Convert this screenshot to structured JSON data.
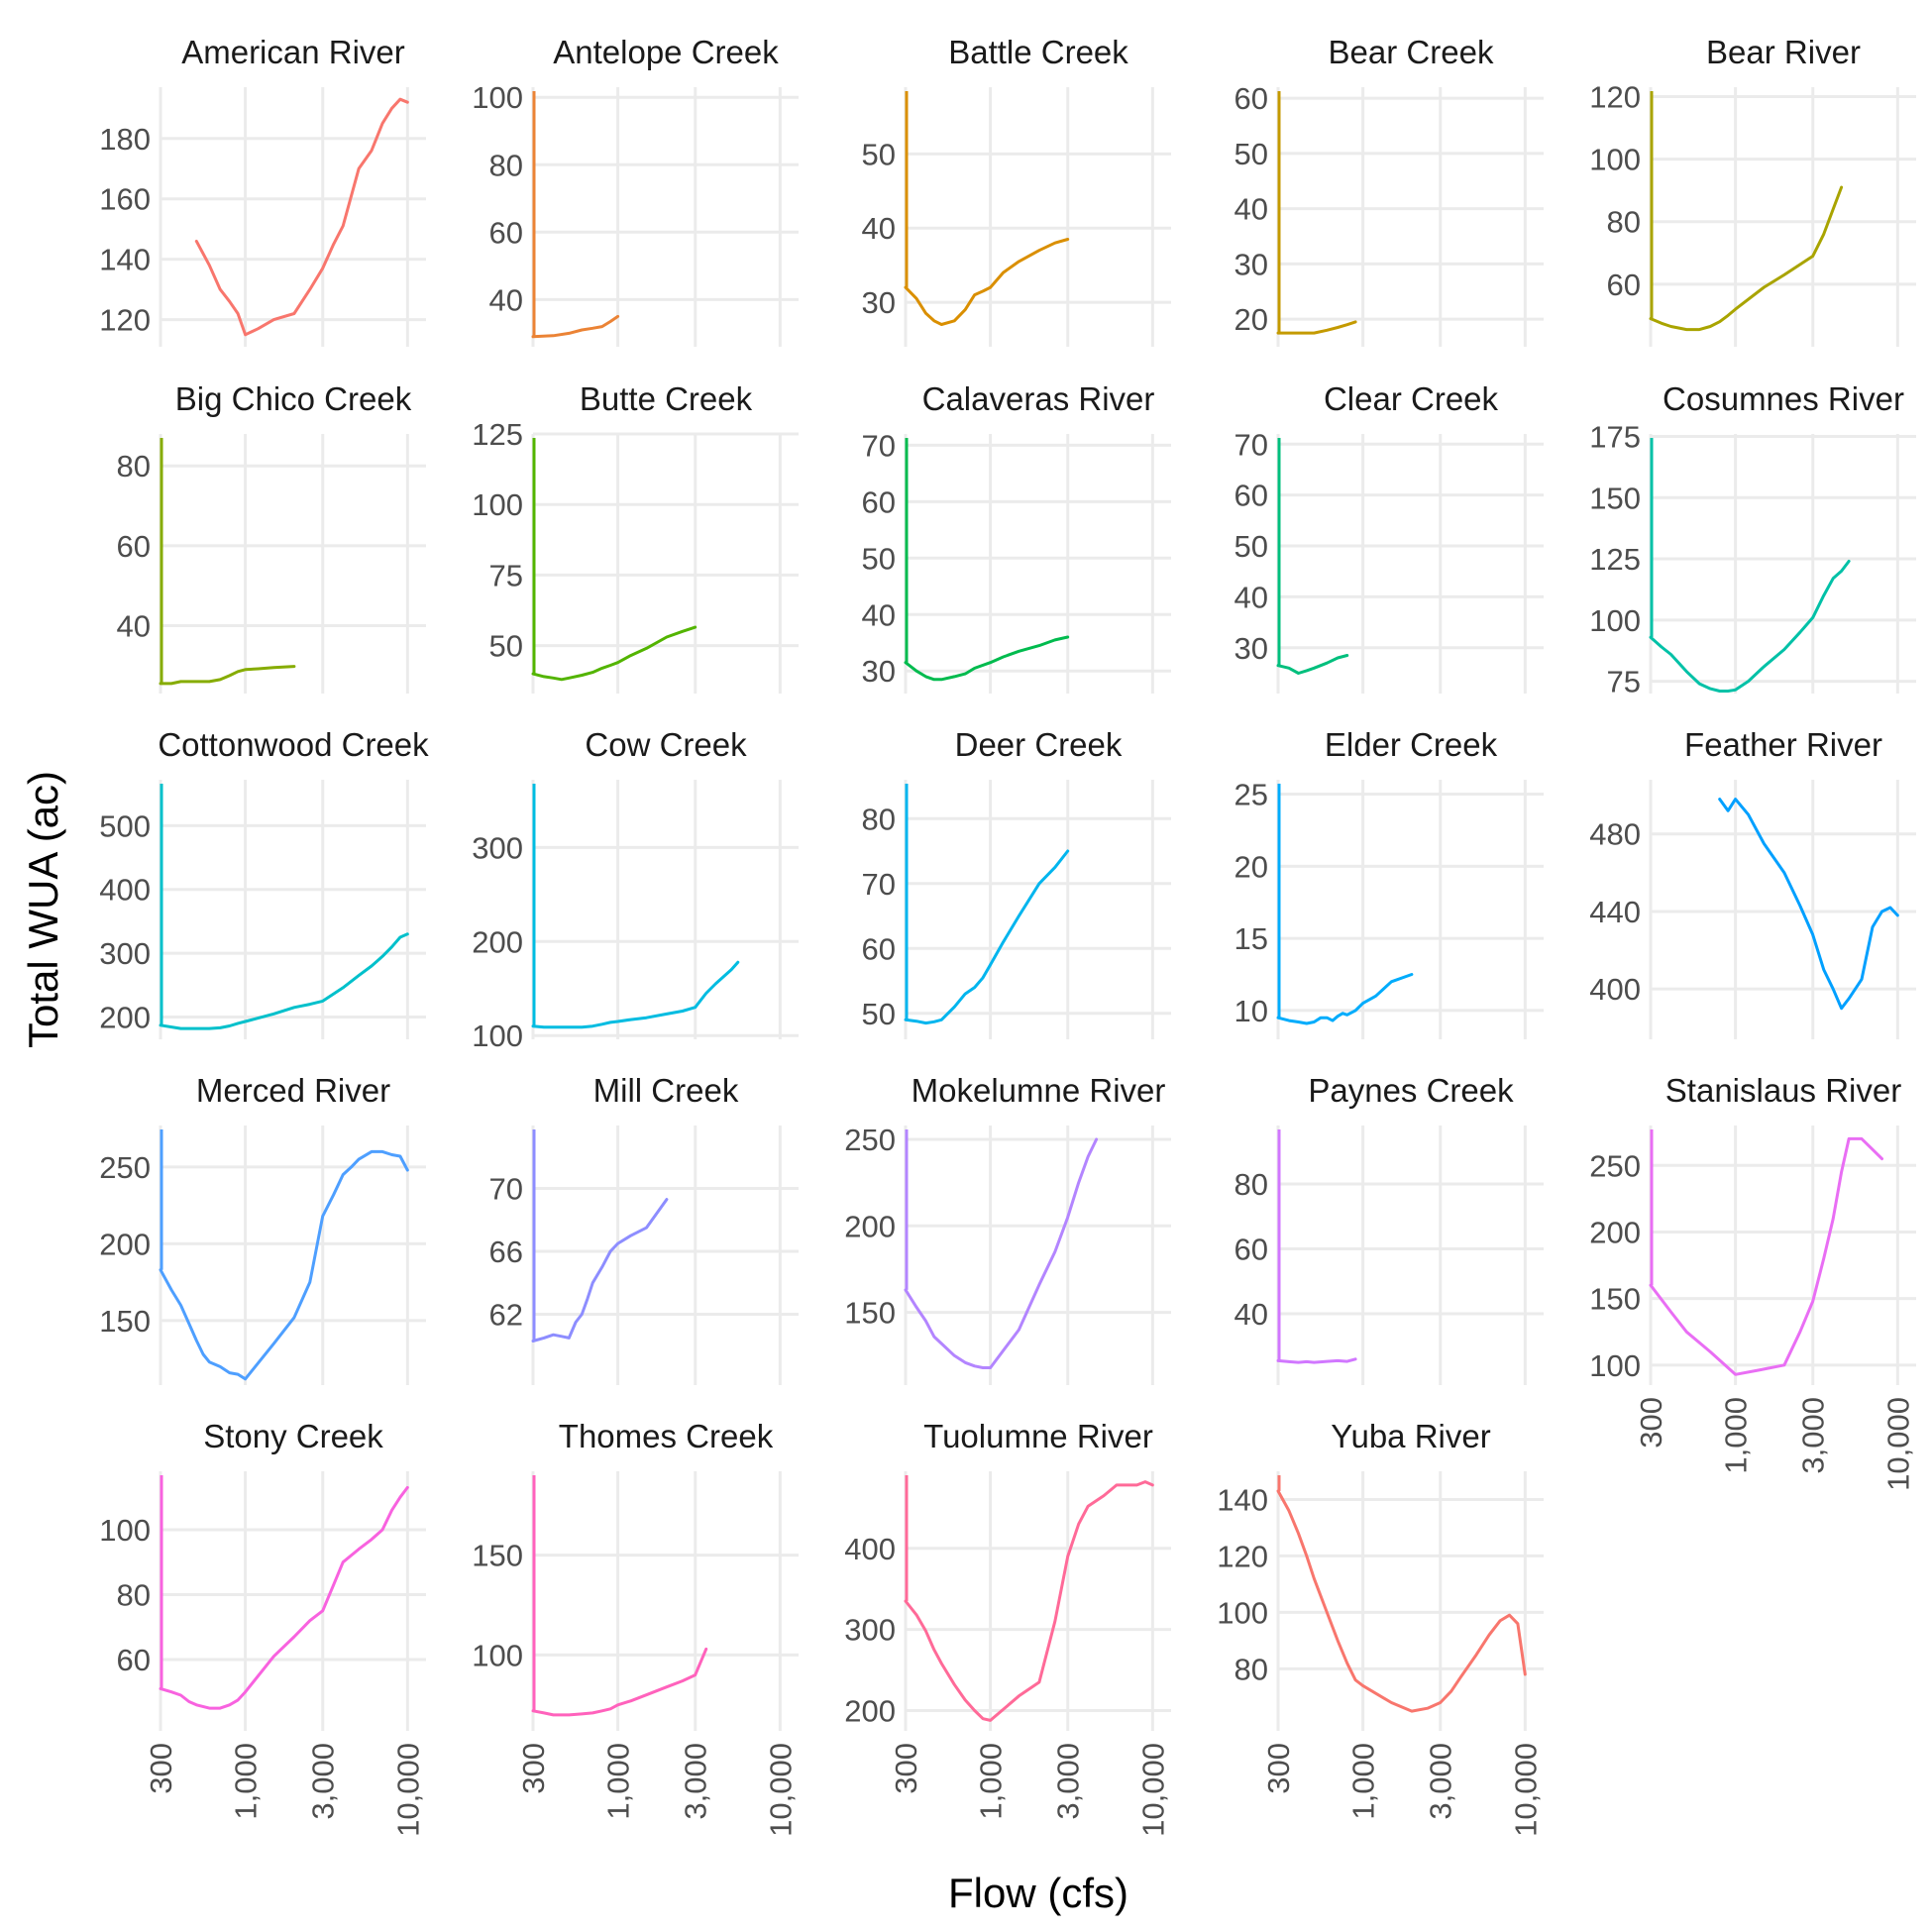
{
  "chart_data": {
    "type": "line",
    "layout": "facet_wrap",
    "xlabel": "Flow (cfs)",
    "ylabel": "Total WUA (ac)",
    "x_scale": "log10",
    "x_ticks": [
      300,
      1000,
      3000,
      10000
    ],
    "x_tick_labels": [
      "300",
      "1,000",
      "3,000",
      "10,000"
    ],
    "xlim": [
      300,
      13000
    ],
    "grid": true,
    "legend": "none",
    "panels": [
      {
        "name": "American River",
        "color": "#F8766D",
        "ylim": [
          111,
          197
        ],
        "yticks": [
          120,
          140,
          160,
          180
        ],
        "x": [
          500,
          600,
          700,
          800,
          900,
          1000,
          1200,
          1500,
          2000,
          2500,
          3000,
          3500,
          4000,
          5000,
          6000,
          7000,
          8000,
          9000,
          10000
        ],
        "y": [
          146,
          138,
          130,
          126,
          122,
          115,
          117,
          120,
          122,
          130,
          137,
          145,
          151,
          170,
          176,
          185,
          190,
          193,
          192
        ]
      },
      {
        "name": "Antelope Creek",
        "color": "#EB8335",
        "ylim": [
          26,
          103
        ],
        "yticks": [
          40,
          60,
          80,
          100
        ],
        "x": [
          300,
          400,
          500,
          600,
          700,
          800,
          900,
          1000
        ],
        "y": [
          29,
          29.3,
          30,
          31,
          31.5,
          32,
          33.5,
          35
        ]
      },
      {
        "name": "Battle Creek",
        "color": "#DA8F00",
        "ylim": [
          24,
          59
        ],
        "yticks": [
          30,
          40,
          50
        ],
        "x": [
          300,
          350,
          400,
          450,
          500,
          600,
          700,
          800,
          900,
          1000,
          1200,
          1500,
          2000,
          2500,
          3000
        ],
        "y": [
          32,
          30.5,
          28.5,
          27.5,
          27,
          27.5,
          29,
          31,
          31.5,
          32,
          34,
          35.5,
          37,
          38,
          38.5
        ]
      },
      {
        "name": "Bear Creek",
        "color": "#C49A00",
        "ylim": [
          15,
          62
        ],
        "yticks": [
          20,
          30,
          40,
          50,
          60
        ],
        "x": [
          300,
          350,
          400,
          500,
          600,
          700,
          800,
          900
        ],
        "y": [
          17.5,
          17.5,
          17.5,
          17.5,
          18,
          18.5,
          19,
          19.5
        ]
      },
      {
        "name": "Bear River",
        "color": "#A9A400",
        "ylim": [
          40,
          123
        ],
        "yticks": [
          60,
          80,
          100,
          120
        ],
        "x": [
          300,
          350,
          400,
          450,
          500,
          600,
          700,
          800,
          900,
          1000,
          1500,
          2000,
          3000,
          3500,
          4000,
          4500
        ],
        "y": [
          49,
          47.5,
          46.5,
          46,
          45.5,
          45.5,
          46.5,
          48,
          50,
          52,
          59,
          63,
          69,
          76,
          84,
          91
        ]
      },
      {
        "name": "Big Chico Creek",
        "color": "#86AC00",
        "ylim": [
          23,
          88
        ],
        "yticks": [
          40,
          60,
          80
        ],
        "x": [
          300,
          350,
          400,
          500,
          600,
          700,
          800,
          900,
          1000,
          1200,
          1500,
          2000
        ],
        "y": [
          25.5,
          25.5,
          26,
          26,
          26,
          26.5,
          27.5,
          28.5,
          29,
          29.2,
          29.5,
          29.8
        ]
      },
      {
        "name": "Butte Creek",
        "color": "#53B400",
        "ylim": [
          33,
          125
        ],
        "yticks": [
          50,
          75,
          100,
          125
        ],
        "x": [
          300,
          350,
          400,
          450,
          500,
          600,
          700,
          800,
          900,
          1000,
          1200,
          1500,
          2000,
          2500,
          3000
        ],
        "y": [
          40,
          39,
          38.5,
          38,
          38.5,
          39.5,
          40.5,
          42,
          43,
          44,
          46.5,
          49,
          53,
          55,
          56.5
        ]
      },
      {
        "name": "Calaveras River",
        "color": "#00BB4E",
        "ylim": [
          26,
          72
        ],
        "yticks": [
          30,
          40,
          50,
          60,
          70
        ],
        "x": [
          300,
          350,
          400,
          450,
          500,
          600,
          700,
          800,
          1000,
          1200,
          1500,
          2000,
          2500,
          3000
        ],
        "y": [
          31.5,
          30,
          29,
          28.5,
          28.5,
          29,
          29.5,
          30.5,
          31.5,
          32.5,
          33.5,
          34.5,
          35.5,
          36
        ]
      },
      {
        "name": "Clear Creek",
        "color": "#00BF7D",
        "ylim": [
          21,
          72
        ],
        "yticks": [
          30,
          40,
          50,
          60,
          70
        ],
        "x": [
          300,
          350,
          400,
          450,
          500,
          600,
          700,
          800
        ],
        "y": [
          26.5,
          26,
          25,
          25.5,
          26,
          27,
          28,
          28.5
        ]
      },
      {
        "name": "Cosumnes River",
        "color": "#00C1A7",
        "ylim": [
          70,
          176
        ],
        "yticks": [
          75,
          100,
          125,
          150,
          175
        ],
        "x": [
          300,
          350,
          400,
          500,
          600,
          700,
          800,
          900,
          1000,
          1200,
          1500,
          2000,
          2500,
          3000,
          3500,
          4000,
          4500,
          5000
        ],
        "y": [
          93,
          89,
          86,
          79,
          74,
          72,
          71,
          71,
          71.5,
          75,
          81,
          88,
          95,
          101,
          110,
          117,
          120,
          124
        ]
      },
      {
        "name": "Cottonwood Creek",
        "color": "#00C0CB",
        "ylim": [
          165,
          572
        ],
        "yticks": [
          200,
          300,
          400,
          500
        ],
        "x": [
          300,
          400,
          500,
          600,
          700,
          800,
          900,
          1000,
          1500,
          2000,
          2500,
          3000,
          4000,
          5000,
          6000,
          7000,
          8000,
          9000,
          10000
        ],
        "y": [
          187,
          182,
          182,
          182,
          183,
          186,
          190,
          193,
          205,
          215,
          220,
          225,
          246,
          265,
          280,
          295,
          310,
          325,
          330
        ]
      },
      {
        "name": "Cow Creek",
        "color": "#00BCE1",
        "ylim": [
          96,
          372
        ],
        "yticks": [
          100,
          200,
          300
        ],
        "x": [
          300,
          350,
          400,
          500,
          600,
          700,
          800,
          900,
          1000,
          1200,
          1500,
          2000,
          2500,
          3000,
          3500,
          4000,
          5000,
          5500
        ],
        "y": [
          110,
          109,
          109,
          109,
          109,
          110,
          112,
          114,
          115,
          117,
          119,
          123,
          126,
          130,
          145,
          155,
          170,
          178
        ]
      },
      {
        "name": "Deer Creek",
        "color": "#00B5EE",
        "ylim": [
          46,
          86
        ],
        "yticks": [
          50,
          60,
          70,
          80
        ],
        "x": [
          300,
          350,
          400,
          450,
          500,
          600,
          700,
          800,
          900,
          1000,
          1200,
          1500,
          2000,
          2500,
          3000
        ],
        "y": [
          49,
          48.8,
          48.5,
          48.7,
          49,
          51,
          53,
          54,
          55.5,
          57.5,
          61,
          65,
          70,
          72.5,
          75
        ]
      },
      {
        "name": "Elder Creek",
        "color": "#00ACFC",
        "ylim": [
          8,
          26
        ],
        "yticks": [
          10,
          15,
          20,
          25
        ],
        "x": [
          300,
          350,
          400,
          450,
          500,
          550,
          600,
          650,
          700,
          750,
          800,
          900,
          1000,
          1200,
          1500,
          2000
        ],
        "y": [
          9.5,
          9.3,
          9.2,
          9.1,
          9.2,
          9.5,
          9.5,
          9.3,
          9.6,
          9.8,
          9.7,
          10,
          10.5,
          11,
          12,
          12.5
        ]
      },
      {
        "name": "Feather River",
        "color": "#00A0FF",
        "ylim": [
          374,
          508
        ],
        "yticks": [
          400,
          440,
          480
        ],
        "x": [
          800,
          900,
          1000,
          1200,
          1500,
          2000,
          2500,
          3000,
          3500,
          4000,
          4500,
          5000,
          6000,
          7000,
          8000,
          9000,
          10000
        ],
        "y": [
          498,
          492,
          498,
          490,
          475,
          460,
          443,
          428,
          410,
          400,
          390,
          395,
          405,
          432,
          440,
          442,
          438
        ]
      },
      {
        "name": "Merced River",
        "color": "#4E9FFF",
        "ylim": [
          108,
          277
        ],
        "yticks": [
          150,
          200,
          250
        ],
        "x": [
          300,
          350,
          400,
          450,
          500,
          550,
          600,
          700,
          800,
          900,
          1000,
          1500,
          2000,
          2500,
          3000,
          3500,
          4000,
          4500,
          5000,
          6000,
          7000,
          8000,
          9000,
          10000
        ],
        "y": [
          183,
          170,
          160,
          148,
          137,
          128,
          123,
          120,
          116,
          115,
          112,
          135,
          152,
          175,
          218,
          232,
          245,
          250,
          255,
          260,
          260,
          258,
          257,
          248
        ]
      },
      {
        "name": "Mill Creek",
        "color": "#8D8DFF",
        "ylim": [
          57.5,
          74
        ],
        "yticks": [
          62,
          66,
          70
        ],
        "x": [
          300,
          350,
          400,
          450,
          500,
          550,
          600,
          650,
          700,
          800,
          900,
          1000,
          1200,
          1500,
          2000
        ],
        "y": [
          60.3,
          60.5,
          60.7,
          60.6,
          60.5,
          61.5,
          62,
          63,
          64,
          65,
          66,
          66.5,
          67,
          67.5,
          69.3
        ]
      },
      {
        "name": "Mokelumne River",
        "color": "#B385FF",
        "ylim": [
          108,
          258
        ],
        "yticks": [
          150,
          200,
          250
        ],
        "x": [
          300,
          350,
          400,
          450,
          500,
          600,
          700,
          800,
          900,
          1000,
          1500,
          2000,
          2500,
          3000,
          3500,
          4000,
          4500
        ],
        "y": [
          163,
          153,
          145,
          136,
          132,
          125,
          121,
          119,
          118,
          118,
          140,
          166,
          185,
          205,
          225,
          240,
          250
        ]
      },
      {
        "name": "Paynes Creek",
        "color": "#D177FF",
        "ylim": [
          18,
          98
        ],
        "yticks": [
          40,
          60,
          80
        ],
        "x": [
          300,
          350,
          400,
          450,
          500,
          600,
          700,
          800,
          900
        ],
        "y": [
          25.5,
          25.2,
          25,
          25.2,
          25,
          25.3,
          25.5,
          25.3,
          26
        ]
      },
      {
        "name": "Stanislaus River",
        "color": "#E96EF4",
        "ylim": [
          85,
          280
        ],
        "yticks": [
          100,
          150,
          200,
          250
        ],
        "x": [
          300,
          400,
          500,
          700,
          1000,
          1500,
          2000,
          2500,
          3000,
          3500,
          4000,
          4500,
          5000,
          6000,
          7000,
          8000
        ],
        "y": [
          160,
          140,
          125,
          110,
          93,
          97,
          100,
          125,
          148,
          180,
          210,
          245,
          270,
          270,
          262,
          255
        ]
      },
      {
        "name": "Stony Creek",
        "color": "#F862DF",
        "ylim": [
          38,
          118
        ],
        "yticks": [
          60,
          80,
          100
        ],
        "x": [
          300,
          350,
          400,
          450,
          500,
          600,
          700,
          800,
          900,
          1000,
          1500,
          2000,
          2500,
          3000,
          3500,
          4000,
          5000,
          6000,
          7000,
          8000,
          9000,
          10000
        ],
        "y": [
          51,
          50,
          49,
          47,
          46,
          45,
          45,
          46,
          47.5,
          50,
          61,
          67,
          72,
          75,
          83,
          90,
          94,
          97,
          100,
          106,
          110,
          113
        ]
      },
      {
        "name": "Thomes Creek",
        "color": "#FF62BC",
        "ylim": [
          62,
          192
        ],
        "yticks": [
          100,
          150
        ],
        "x": [
          300,
          350,
          400,
          450,
          500,
          600,
          700,
          800,
          900,
          1000,
          1200,
          1500,
          2000,
          2500,
          3000,
          3500
        ],
        "y": [
          72,
          71,
          70,
          70,
          70,
          70.5,
          71,
          72,
          73,
          75,
          77,
          80,
          84,
          87,
          90,
          103
        ]
      },
      {
        "name": "Tuolumne River",
        "color": "#FF6A98",
        "ylim": [
          175,
          495
        ],
        "yticks": [
          200,
          300,
          400
        ],
        "x": [
          300,
          350,
          400,
          450,
          500,
          600,
          700,
          800,
          900,
          1000,
          1500,
          2000,
          2500,
          3000,
          3500,
          4000,
          5000,
          6000,
          7000,
          8000,
          9000,
          10000
        ],
        "y": [
          335,
          318,
          298,
          275,
          258,
          232,
          213,
          200,
          190,
          188,
          218,
          235,
          310,
          390,
          430,
          452,
          465,
          478,
          478,
          478,
          482,
          478
        ]
      },
      {
        "name": "Yuba River",
        "color": "#F8766D",
        "ylim": [
          58,
          150
        ],
        "yticks": [
          80,
          100,
          120,
          140
        ],
        "x": [
          300,
          350,
          400,
          450,
          500,
          600,
          700,
          800,
          900,
          1000,
          1500,
          2000,
          2500,
          3000,
          3500,
          4000,
          5000,
          6000,
          7000,
          8000,
          9000,
          10000
        ],
        "y": [
          143,
          136,
          128,
          120,
          112,
          100,
          90,
          82,
          76,
          74,
          68,
          65,
          66,
          68,
          72,
          77,
          85,
          92,
          97,
          99,
          96,
          78
        ]
      }
    ]
  }
}
